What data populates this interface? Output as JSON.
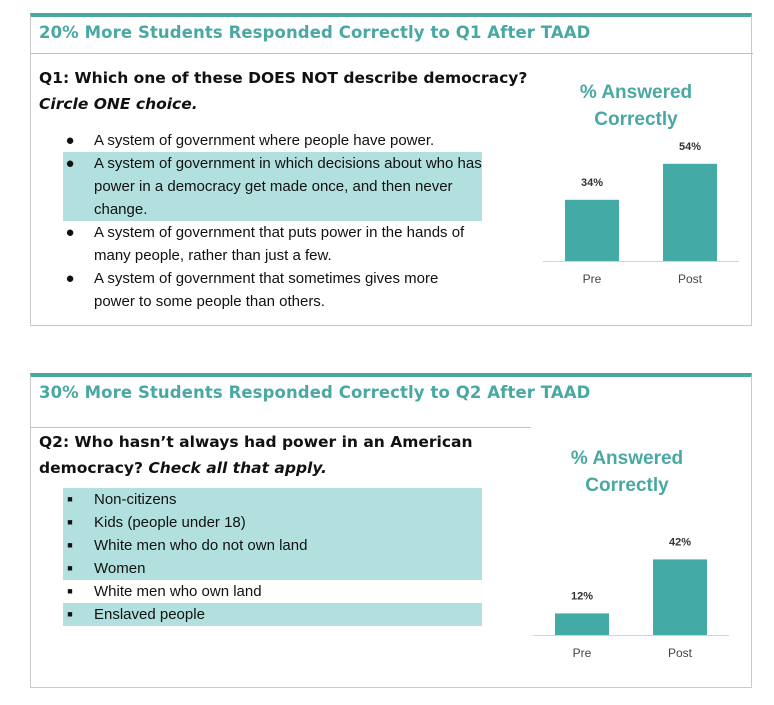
{
  "panels": [
    {
      "banner": "20% More Students Responded Correctly to Q1 After TAAD",
      "question": {
        "prefix": "Q1: Which one of these DOES NOT describe democracy?",
        "instruction": "Circle ONE choice."
      },
      "options": [
        {
          "text": "A system of government where people have power.",
          "highlighted": false
        },
        {
          "text": "A system of government in which decisions about who has power in a democracy get made once, and then never change.",
          "highlighted": true
        },
        {
          "text": "A system of government that puts power in the hands of many people, rather than just a few.",
          "highlighted": false
        },
        {
          "text": "A system of government that sometimes gives more power to some people than others.",
          "highlighted": false
        }
      ]
    },
    {
      "banner": "30% More Students Responded Correctly to Q2 After TAAD",
      "question": {
        "prefix": "Q2: Who hasn’t always had power in an American democracy?",
        "instruction": "Check all that apply."
      },
      "options": [
        {
          "text": "Non-citizens",
          "highlighted": true
        },
        {
          "text": "Kids (people under 18)",
          "highlighted": true
        },
        {
          "text": "White men who do not own land",
          "highlighted": true
        },
        {
          "text": "Women",
          "highlighted": true
        },
        {
          "text": "White men who own land",
          "highlighted": false
        },
        {
          "text": "Enslaved people",
          "highlighted": true
        }
      ]
    }
  ],
  "chart_data": [
    {
      "type": "bar",
      "title": "% Answered Correctly",
      "categories": [
        "Pre",
        "Post"
      ],
      "values": [
        34,
        54
      ],
      "data_labels": [
        "34%",
        "54%"
      ],
      "xlabel": "",
      "ylabel": "",
      "ylim": [
        0,
        60
      ],
      "grid": false,
      "bar_color": "#44aaa6"
    },
    {
      "type": "bar",
      "title": "% Answered Correctly",
      "categories": [
        "Pre",
        "Post"
      ],
      "values": [
        12,
        42
      ],
      "data_labels": [
        "12%",
        "42%"
      ],
      "xlabel": "",
      "ylabel": "",
      "ylim": [
        0,
        60
      ],
      "grid": false,
      "bar_color": "#44aaa6"
    }
  ],
  "colors": {
    "accent": "#4aa8a3",
    "highlight": "#b1e0df",
    "bar": "#44aaa6"
  }
}
